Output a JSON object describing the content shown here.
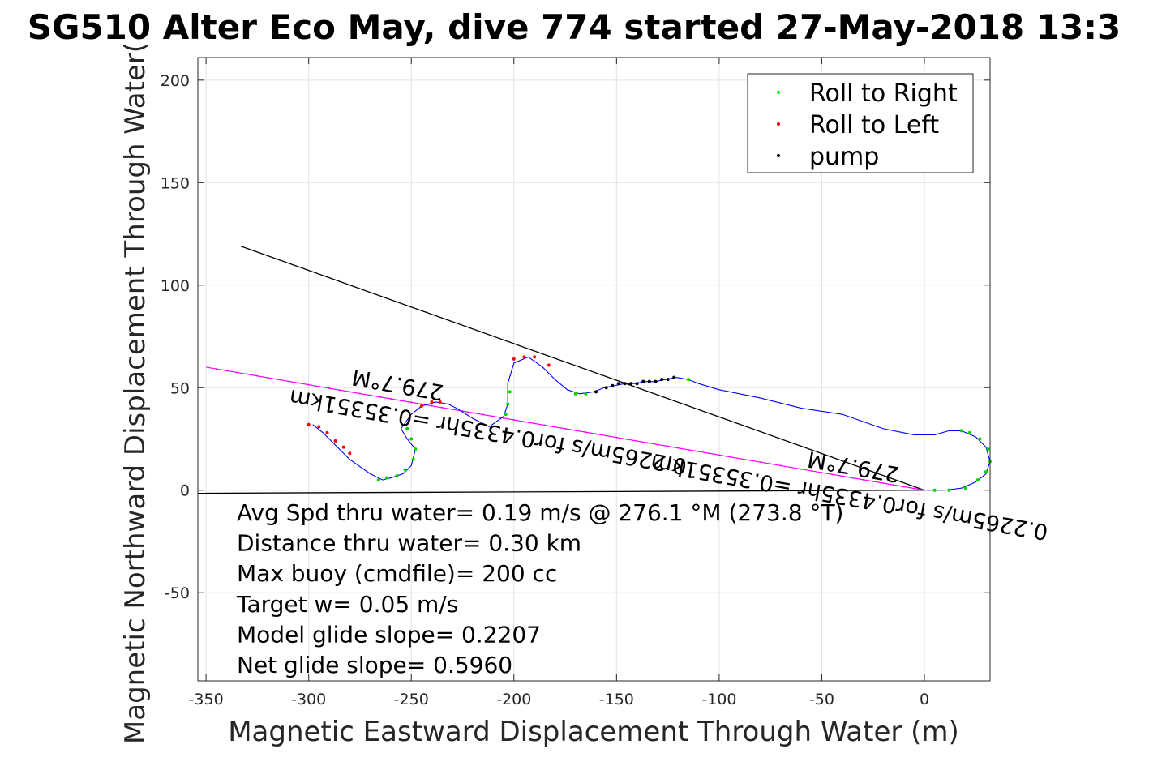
{
  "chart_data": {
    "type": "scatter",
    "title": "SG510 Alter Eco May, dive 774 started 27-May-2018 13:3",
    "xlabel": "Magnetic Eastward Displacement Through Water (m)",
    "ylabel": "Magnetic Northward Displacement Through Water(",
    "xlim": [
      -354,
      32
    ],
    "ylim": [
      -93,
      211
    ],
    "xticks": [
      -350,
      -300,
      -250,
      -200,
      -150,
      -100,
      -50,
      0
    ],
    "yticks": [
      -50,
      0,
      50,
      100,
      150,
      200
    ],
    "grid": true,
    "legend_position": "top-right",
    "legend": [
      {
        "label": "Roll to Right",
        "color": "#00ff00"
      },
      {
        "label": "Roll to Left",
        "color": "#ff0000"
      },
      {
        "label": "pump",
        "color": "#000000"
      }
    ],
    "track": {
      "color": "#0000ff",
      "points": [
        [
          0,
          0
        ],
        [
          10,
          0
        ],
        [
          18,
          1
        ],
        [
          25,
          4
        ],
        [
          30,
          8
        ],
        [
          32,
          14
        ],
        [
          30,
          21
        ],
        [
          25,
          26
        ],
        [
          18,
          29
        ],
        [
          12,
          29
        ],
        [
          5,
          27
        ],
        [
          0,
          27
        ],
        [
          -5,
          27
        ],
        [
          -10,
          28
        ],
        [
          -20,
          30
        ],
        [
          -40,
          37
        ],
        [
          -60,
          40
        ],
        [
          -80,
          45
        ],
        [
          -100,
          49
        ],
        [
          -110,
          52
        ],
        [
          -115,
          54
        ],
        [
          -121,
          55
        ],
        [
          -126,
          54
        ],
        [
          -131,
          53
        ],
        [
          -136,
          53
        ],
        [
          -141,
          52
        ],
        [
          -146,
          52
        ],
        [
          -151,
          51
        ],
        [
          -156,
          50
        ],
        [
          -161,
          48
        ],
        [
          -168,
          47
        ],
        [
          -174,
          49
        ],
        [
          -180,
          54
        ],
        [
          -186,
          60
        ],
        [
          -193,
          65
        ],
        [
          -200,
          62
        ],
        [
          -203,
          52
        ],
        [
          -203,
          42
        ],
        [
          -205,
          36
        ],
        [
          -212,
          31
        ],
        [
          -220,
          35
        ],
        [
          -228,
          40
        ],
        [
          -232,
          42
        ],
        [
          -238,
          43
        ],
        [
          -245,
          41
        ],
        [
          -250,
          37
        ],
        [
          -255,
          30
        ],
        [
          -252,
          25
        ],
        [
          -248,
          20
        ],
        [
          -250,
          12
        ],
        [
          -254,
          8
        ],
        [
          -260,
          6
        ],
        [
          -264,
          5
        ],
        [
          -270,
          8
        ],
        [
          -280,
          15
        ],
        [
          -287,
          22
        ],
        [
          -293,
          28
        ],
        [
          -298,
          32
        ]
      ]
    },
    "roll_right": [
      [
        5,
        0
      ],
      [
        12,
        0
      ],
      [
        20,
        1
      ],
      [
        26,
        5
      ],
      [
        30,
        9
      ],
      [
        32,
        14
      ],
      [
        31,
        20
      ],
      [
        27,
        25
      ],
      [
        22,
        28
      ],
      [
        18,
        29
      ],
      [
        -115,
        54
      ],
      [
        -165,
        47
      ],
      [
        -170,
        47
      ],
      [
        -202,
        48
      ],
      [
        -203,
        42
      ],
      [
        -204,
        37
      ],
      [
        -252,
        30
      ],
      [
        -250,
        25
      ],
      [
        -248,
        20
      ],
      [
        -249,
        15
      ],
      [
        -253,
        10
      ],
      [
        -257,
        7
      ],
      [
        -262,
        6
      ],
      [
        -266,
        5
      ]
    ],
    "roll_left": [
      [
        -190,
        65
      ],
      [
        -195,
        65
      ],
      [
        -200,
        64
      ],
      [
        -183,
        61
      ],
      [
        -236,
        43
      ],
      [
        -240,
        43
      ],
      [
        -245,
        41
      ],
      [
        -300,
        32
      ],
      [
        -295,
        31
      ],
      [
        -291,
        28
      ],
      [
        -287,
        24
      ],
      [
        -283,
        21
      ],
      [
        -280,
        18
      ]
    ],
    "pump": [
      [
        -160,
        48
      ],
      [
        -155,
        50
      ],
      [
        -152,
        51
      ],
      [
        -149,
        52
      ],
      [
        -146,
        52
      ],
      [
        -143,
        52
      ],
      [
        -140,
        52
      ],
      [
        -137,
        53
      ],
      [
        -134,
        53
      ],
      [
        -131,
        53
      ],
      [
        -128,
        54
      ],
      [
        -125,
        54
      ],
      [
        -122,
        55
      ]
    ],
    "lines": [
      {
        "name": "",
        "color": "#000000",
        "points": [
          [
            0,
            0
          ],
          [
            -333,
            119
          ]
        ]
      },
      {
        "name": "",
        "color": "#000000",
        "points": [
          [
            0,
            0
          ],
          [
            -354,
            -1.5
          ]
        ]
      },
      {
        "name": "",
        "color": "#ff00ff",
        "points": [
          [
            0,
            0
          ],
          [
            -350,
            60
          ]
        ]
      }
    ],
    "annotations": [
      {
        "text": "279.7°M",
        "x": -256,
        "y": 55,
        "rotate": 190
      },
      {
        "text": "0.2265m/s for0.4335hr =0.35351km",
        "x": -212,
        "y": 32,
        "rotate": 190
      },
      {
        "text": "279.7°M",
        "x": -34,
        "y": 15,
        "rotate": 190
      },
      {
        "text": "0.2265m/s for0.4335hr =0.35351km",
        "x": -36,
        "y": 0,
        "rotate": 190
      }
    ],
    "stats": [
      "Avg Spd thru water=  0.19 m/s @ 276.1 °M (273.8 °T)",
      "Distance thru water=  0.30 km",
      "Max buoy (cmdfile)= 200 cc",
      "Target w= 0.05 m/s",
      "Model glide slope= 0.2207",
      "Net glide slope= 0.5960"
    ]
  }
}
